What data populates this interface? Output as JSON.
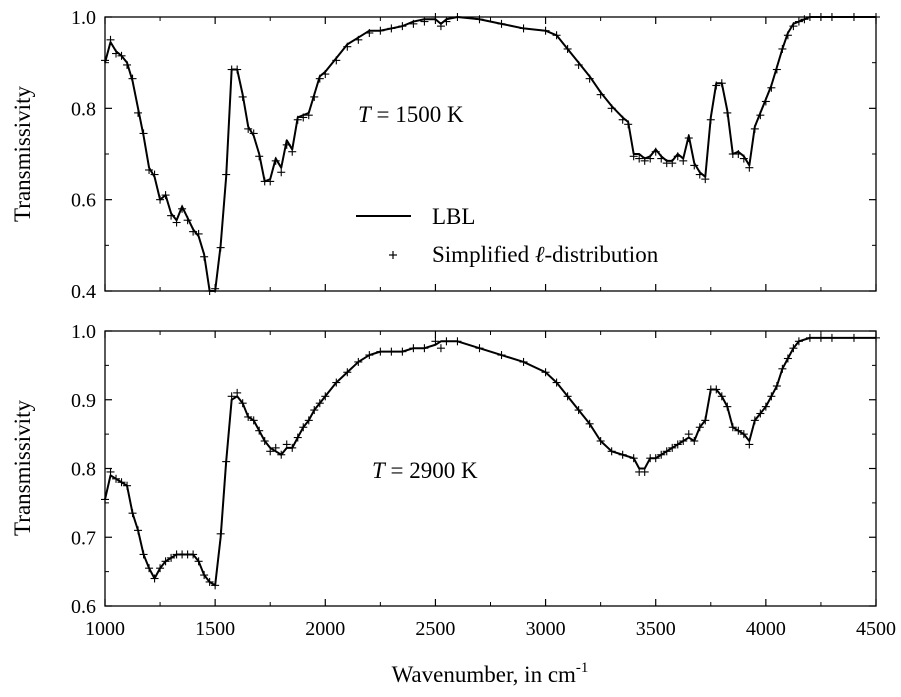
{
  "chart_data": [
    {
      "type": "line",
      "ylabel": "Transmissivity",
      "xlim": [
        1000,
        4500
      ],
      "ylim": [
        0.4,
        1.0
      ],
      "xticks": [
        1000,
        1500,
        2000,
        2500,
        3000,
        3500,
        4000,
        4500
      ],
      "yticks": [
        0.4,
        0.6,
        0.8,
        1.0
      ],
      "ytick_labels": [
        "0.4",
        "0.6",
        "0.8",
        "1.0"
      ],
      "annotation": {
        "italic": "T",
        "rest": " = 1500 K"
      },
      "legend": [
        {
          "kind": "line",
          "label": "LBL"
        },
        {
          "kind": "marker",
          "label_prefix": "Simplified ",
          "label_italic": "ℓ",
          "label_suffix": "-distribution"
        }
      ],
      "series": [
        {
          "name": "LBL",
          "style": "line",
          "x": [
            1000,
            1025,
            1050,
            1075,
            1100,
            1125,
            1150,
            1175,
            1200,
            1225,
            1250,
            1275,
            1300,
            1325,
            1350,
            1375,
            1400,
            1425,
            1450,
            1475,
            1500,
            1525,
            1550,
            1575,
            1600,
            1625,
            1650,
            1675,
            1700,
            1725,
            1750,
            1775,
            1800,
            1825,
            1850,
            1875,
            1900,
            1925,
            1950,
            1975,
            2000,
            2050,
            2100,
            2150,
            2200,
            2250,
            2300,
            2350,
            2400,
            2450,
            2500,
            2525,
            2550,
            2600,
            2700,
            2800,
            2900,
            3000,
            3050,
            3100,
            3150,
            3200,
            3250,
            3300,
            3350,
            3375,
            3400,
            3425,
            3450,
            3475,
            3500,
            3525,
            3550,
            3575,
            3600,
            3625,
            3650,
            3675,
            3700,
            3725,
            3750,
            3775,
            3800,
            3825,
            3850,
            3875,
            3900,
            3925,
            3950,
            3975,
            4000,
            4025,
            4050,
            4075,
            4100,
            4125,
            4150,
            4175,
            4200,
            4250,
            4300,
            4400,
            4500
          ],
          "y": [
            0.9,
            0.945,
            0.925,
            0.915,
            0.9,
            0.86,
            0.8,
            0.74,
            0.67,
            0.65,
            0.6,
            0.61,
            0.57,
            0.555,
            0.585,
            0.56,
            0.535,
            0.52,
            0.48,
            0.4,
            0.4,
            0.5,
            0.65,
            0.885,
            0.885,
            0.83,
            0.76,
            0.74,
            0.7,
            0.64,
            0.645,
            0.69,
            0.67,
            0.73,
            0.71,
            0.78,
            0.785,
            0.79,
            0.83,
            0.87,
            0.88,
            0.91,
            0.94,
            0.955,
            0.97,
            0.97,
            0.975,
            0.98,
            0.99,
            0.995,
            0.995,
            0.985,
            0.995,
            1.0,
            0.995,
            0.985,
            0.975,
            0.97,
            0.96,
            0.93,
            0.9,
            0.87,
            0.835,
            0.805,
            0.78,
            0.77,
            0.7,
            0.7,
            0.69,
            0.695,
            0.71,
            0.695,
            0.685,
            0.685,
            0.7,
            0.69,
            0.74,
            0.68,
            0.66,
            0.65,
            0.78,
            0.855,
            0.855,
            0.795,
            0.7,
            0.705,
            0.695,
            0.675,
            0.76,
            0.79,
            0.82,
            0.85,
            0.89,
            0.93,
            0.965,
            0.985,
            0.99,
            0.995,
            1.0,
            1.0,
            1.0,
            1.0,
            1.0
          ]
        },
        {
          "name": "Simplified ℓ-distribution",
          "style": "plus",
          "x": [
            1000,
            1025,
            1050,
            1075,
            1100,
            1125,
            1150,
            1175,
            1200,
            1225,
            1250,
            1275,
            1300,
            1325,
            1350,
            1375,
            1400,
            1425,
            1450,
            1475,
            1500,
            1525,
            1550,
            1575,
            1600,
            1625,
            1650,
            1675,
            1700,
            1725,
            1750,
            1775,
            1800,
            1825,
            1850,
            1875,
            1900,
            1925,
            1950,
            1975,
            2000,
            2050,
            2100,
            2150,
            2200,
            2250,
            2300,
            2350,
            2400,
            2450,
            2500,
            2525,
            2550,
            2600,
            2700,
            2800,
            2900,
            3000,
            3050,
            3100,
            3150,
            3200,
            3250,
            3300,
            3350,
            3375,
            3400,
            3425,
            3450,
            3475,
            3500,
            3525,
            3550,
            3575,
            3600,
            3625,
            3650,
            3675,
            3700,
            3725,
            3750,
            3775,
            3800,
            3825,
            3850,
            3875,
            3900,
            3925,
            3950,
            3975,
            4000,
            4025,
            4050,
            4075,
            4100,
            4125,
            4150,
            4175,
            4200,
            4250,
            4300,
            4400,
            4500
          ],
          "y": [
            0.905,
            0.95,
            0.92,
            0.915,
            0.895,
            0.865,
            0.79,
            0.745,
            0.665,
            0.655,
            0.6,
            0.61,
            0.565,
            0.55,
            0.58,
            0.555,
            0.53,
            0.525,
            0.475,
            0.4,
            0.405,
            0.495,
            0.655,
            0.885,
            0.885,
            0.825,
            0.755,
            0.745,
            0.695,
            0.64,
            0.64,
            0.685,
            0.66,
            0.72,
            0.705,
            0.775,
            0.78,
            0.785,
            0.825,
            0.865,
            0.875,
            0.905,
            0.935,
            0.95,
            0.965,
            0.97,
            0.975,
            0.98,
            0.985,
            0.99,
            1.0,
            0.98,
            0.99,
            1.0,
            0.995,
            0.985,
            0.975,
            0.97,
            0.96,
            0.93,
            0.895,
            0.865,
            0.83,
            0.8,
            0.775,
            0.765,
            0.695,
            0.69,
            0.685,
            0.69,
            0.705,
            0.69,
            0.68,
            0.68,
            0.695,
            0.685,
            0.735,
            0.675,
            0.655,
            0.645,
            0.775,
            0.85,
            0.855,
            0.79,
            0.7,
            0.7,
            0.69,
            0.67,
            0.755,
            0.785,
            0.815,
            0.845,
            0.885,
            0.93,
            0.96,
            0.98,
            0.99,
            0.995,
            1.0,
            1.0,
            1.0,
            1.0,
            1.0
          ]
        }
      ]
    },
    {
      "type": "line",
      "xlabel": "Wavenumber, in cm",
      "xlabel_sup": "-1",
      "ylabel": "Transmissivity",
      "xlim": [
        1000,
        4500
      ],
      "ylim": [
        0.6,
        1.0
      ],
      "xticks": [
        1000,
        1500,
        2000,
        2500,
        3000,
        3500,
        4000,
        4500
      ],
      "yticks": [
        0.6,
        0.7,
        0.8,
        0.9,
        1.0
      ],
      "ytick_labels": [
        "0.6",
        "0.7",
        "0.8",
        "0.9",
        "1.0"
      ],
      "annotation": {
        "italic": "T",
        "rest": " = 2900 K"
      },
      "series": [
        {
          "name": "LBL",
          "style": "line",
          "x": [
            1000,
            1025,
            1050,
            1075,
            1100,
            1125,
            1150,
            1175,
            1200,
            1225,
            1250,
            1275,
            1300,
            1325,
            1350,
            1375,
            1400,
            1425,
            1450,
            1475,
            1500,
            1525,
            1550,
            1575,
            1600,
            1625,
            1650,
            1675,
            1700,
            1725,
            1750,
            1775,
            1800,
            1825,
            1850,
            1875,
            1900,
            1925,
            1950,
            1975,
            2000,
            2050,
            2100,
            2150,
            2200,
            2250,
            2300,
            2350,
            2400,
            2450,
            2500,
            2525,
            2550,
            2600,
            2700,
            2800,
            2900,
            3000,
            3050,
            3100,
            3150,
            3200,
            3250,
            3300,
            3350,
            3400,
            3425,
            3450,
            3475,
            3500,
            3525,
            3550,
            3575,
            3600,
            3625,
            3650,
            3675,
            3700,
            3725,
            3750,
            3775,
            3800,
            3825,
            3850,
            3875,
            3900,
            3925,
            3950,
            3975,
            4000,
            4025,
            4050,
            4075,
            4100,
            4125,
            4150,
            4200,
            4250,
            4300,
            4400,
            4500
          ],
          "y": [
            0.755,
            0.79,
            0.785,
            0.78,
            0.775,
            0.735,
            0.71,
            0.675,
            0.655,
            0.64,
            0.655,
            0.665,
            0.67,
            0.675,
            0.675,
            0.675,
            0.675,
            0.665,
            0.645,
            0.635,
            0.63,
            0.7,
            0.81,
            0.9,
            0.905,
            0.895,
            0.875,
            0.87,
            0.855,
            0.84,
            0.83,
            0.825,
            0.82,
            0.83,
            0.83,
            0.845,
            0.86,
            0.87,
            0.885,
            0.895,
            0.905,
            0.925,
            0.94,
            0.955,
            0.965,
            0.97,
            0.97,
            0.97,
            0.975,
            0.975,
            0.98,
            0.985,
            0.985,
            0.985,
            0.975,
            0.965,
            0.955,
            0.94,
            0.925,
            0.905,
            0.885,
            0.865,
            0.84,
            0.825,
            0.82,
            0.815,
            0.8,
            0.8,
            0.815,
            0.815,
            0.82,
            0.825,
            0.83,
            0.835,
            0.84,
            0.845,
            0.84,
            0.86,
            0.87,
            0.915,
            0.915,
            0.905,
            0.89,
            0.86,
            0.855,
            0.85,
            0.84,
            0.87,
            0.88,
            0.89,
            0.905,
            0.92,
            0.945,
            0.96,
            0.975,
            0.985,
            0.99,
            0.99,
            0.99,
            0.99,
            0.99
          ]
        },
        {
          "name": "Simplified ℓ-distribution",
          "style": "plus",
          "x": [
            1000,
            1025,
            1050,
            1075,
            1100,
            1125,
            1150,
            1175,
            1200,
            1225,
            1250,
            1275,
            1300,
            1325,
            1350,
            1375,
            1400,
            1425,
            1450,
            1475,
            1500,
            1525,
            1550,
            1575,
            1600,
            1625,
            1650,
            1675,
            1700,
            1725,
            1750,
            1775,
            1800,
            1825,
            1850,
            1875,
            1900,
            1925,
            1950,
            1975,
            2000,
            2050,
            2100,
            2150,
            2200,
            2250,
            2300,
            2350,
            2400,
            2450,
            2500,
            2525,
            2550,
            2600,
            2700,
            2800,
            2900,
            3000,
            3050,
            3100,
            3150,
            3200,
            3250,
            3300,
            3350,
            3400,
            3425,
            3450,
            3475,
            3500,
            3525,
            3550,
            3575,
            3600,
            3625,
            3650,
            3675,
            3700,
            3725,
            3750,
            3775,
            3800,
            3825,
            3850,
            3875,
            3900,
            3925,
            3950,
            3975,
            4000,
            4025,
            4050,
            4075,
            4100,
            4125,
            4150,
            4200,
            4250,
            4300,
            4400,
            4500
          ],
          "y": [
            0.755,
            0.795,
            0.785,
            0.78,
            0.775,
            0.735,
            0.71,
            0.675,
            0.655,
            0.64,
            0.655,
            0.665,
            0.67,
            0.675,
            0.675,
            0.675,
            0.675,
            0.665,
            0.645,
            0.635,
            0.63,
            0.705,
            0.81,
            0.905,
            0.91,
            0.895,
            0.875,
            0.87,
            0.855,
            0.84,
            0.825,
            0.83,
            0.82,
            0.835,
            0.83,
            0.845,
            0.86,
            0.87,
            0.885,
            0.895,
            0.905,
            0.925,
            0.94,
            0.955,
            0.965,
            0.97,
            0.97,
            0.97,
            0.975,
            0.975,
            0.985,
            0.975,
            0.985,
            0.985,
            0.975,
            0.965,
            0.955,
            0.94,
            0.925,
            0.905,
            0.885,
            0.865,
            0.84,
            0.825,
            0.82,
            0.815,
            0.795,
            0.795,
            0.815,
            0.815,
            0.82,
            0.825,
            0.83,
            0.835,
            0.84,
            0.85,
            0.84,
            0.86,
            0.87,
            0.915,
            0.915,
            0.905,
            0.89,
            0.86,
            0.855,
            0.85,
            0.835,
            0.87,
            0.88,
            0.89,
            0.905,
            0.92,
            0.945,
            0.96,
            0.975,
            0.985,
            0.99,
            0.99,
            0.99,
            0.99,
            0.99
          ]
        }
      ]
    }
  ]
}
